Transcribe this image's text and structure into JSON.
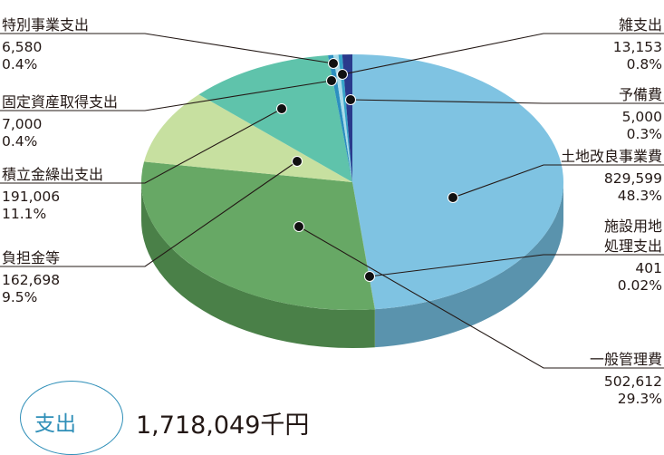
{
  "chart_data": {
    "type": "pie",
    "slices": [
      {
        "label": "土地改良事業費",
        "value": 829599,
        "percent": "48.3%",
        "color": "#7fc3e2",
        "side": "#5a93ad"
      },
      {
        "label": "施設用地\n処理支出",
        "value": 401,
        "percent": "0.02%",
        "color": "#6fad72",
        "side": "#4f8a52"
      },
      {
        "label": "一般管理費",
        "value": 502612,
        "percent": "29.3%",
        "color": "#67a865",
        "side": "#4a8048"
      },
      {
        "label": "負担金等",
        "value": 162698,
        "percent": "9.5%",
        "color": "#c7e0a0",
        "side": "#9fb880"
      },
      {
        "label": "積立金繰出支出",
        "value": 191006,
        "percent": "11.1%",
        "color": "#5fc3ab",
        "side": "#3f9984"
      },
      {
        "label": "固定資産取得支出",
        "value": 7000,
        "percent": "0.4%",
        "color": "#2c8fc0",
        "side": "#1d6a90"
      },
      {
        "label": "特別事業支出",
        "value": 6580,
        "percent": "0.4%",
        "color": "#a8dbe9",
        "side": "#7fb2c0"
      },
      {
        "label": "予備費",
        "value": 5000,
        "percent": "0.3%",
        "color": "#36a4c9",
        "side": "#277d99"
      },
      {
        "label": "雑支出",
        "value": 13153,
        "percent": "0.8%",
        "color": "#2a3a8c",
        "side": "#1b2766"
      }
    ],
    "value_labels": {
      "土地改良事業費": "829,599",
      "施設用地\n処理支出": "401",
      "一般管理費": "502,612",
      "負担金等": "162,698",
      "積立金繰出支出": "191,006",
      "固定資産取得支出": "7,000",
      "特別事業支出": "6,580",
      "予備費": "5,000",
      "雑支出": "13,153"
    }
  },
  "total": {
    "badge": "支出",
    "amount": "1,718,049千円"
  }
}
